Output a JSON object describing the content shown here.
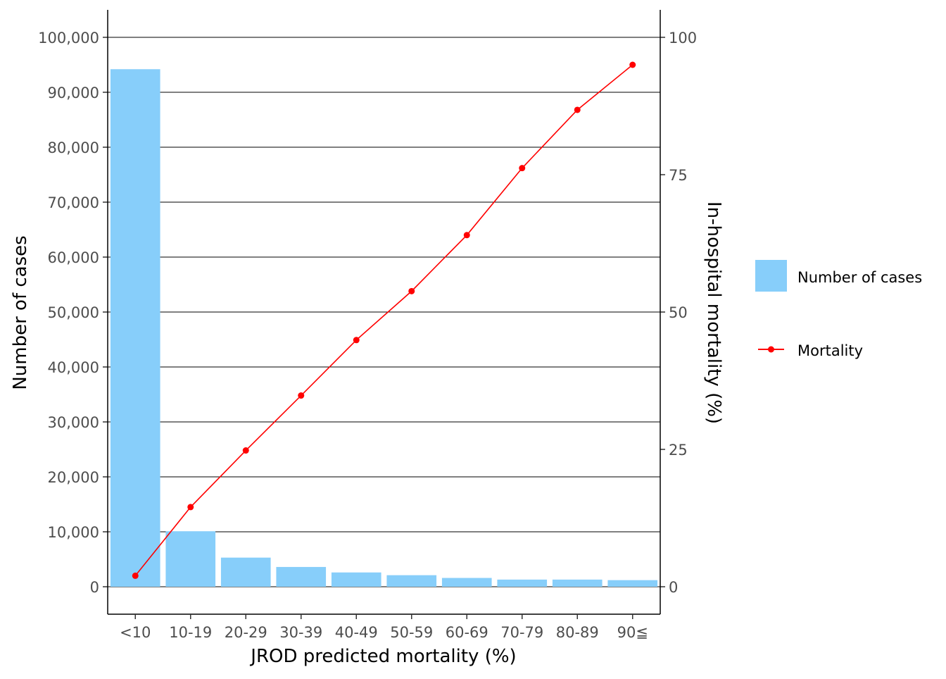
{
  "chart_data": {
    "type": "bar+line",
    "title": "",
    "xlabel": "JROD predicted mortality (%)",
    "ylabel": "Number of cases",
    "y2label": "In-hospital mortality (%)",
    "categories": [
      "<10",
      "10-19",
      "20-29",
      "30-39",
      "40-49",
      "50-59",
      "60-69",
      "70-79",
      "80-89",
      "90≦"
    ],
    "series": [
      {
        "name": "Number of cases",
        "type": "bar",
        "axis": "left",
        "color": "#87CEFA",
        "values": [
          94200,
          10100,
          5300,
          3600,
          2600,
          2100,
          1600,
          1300,
          1300,
          1200
        ]
      },
      {
        "name": "Mortality",
        "type": "line",
        "axis": "right",
        "color": "#FF0000",
        "values": [
          2.0,
          14.5,
          24.8,
          34.8,
          44.9,
          53.8,
          64.0,
          76.2,
          86.8,
          95.0
        ]
      }
    ],
    "ylim": [
      -5000,
      105000
    ],
    "y2lim": [
      -5,
      105
    ],
    "yticks": [
      0,
      10000,
      20000,
      30000,
      40000,
      50000,
      60000,
      70000,
      80000,
      90000,
      100000
    ],
    "yticklabels": [
      "0",
      "10,000",
      "20,000",
      "30,000",
      "40,000",
      "50,000",
      "60,000",
      "70,000",
      "80,000",
      "90,000",
      "100,000"
    ],
    "y2ticks": [
      0,
      25,
      50,
      75,
      100
    ],
    "y2ticklabels": [
      "0",
      "25",
      "50",
      "75",
      "100"
    ],
    "grid": "horizontal major",
    "legend": "right",
    "legend_entries": [
      "Number of cases",
      "Mortality"
    ]
  }
}
